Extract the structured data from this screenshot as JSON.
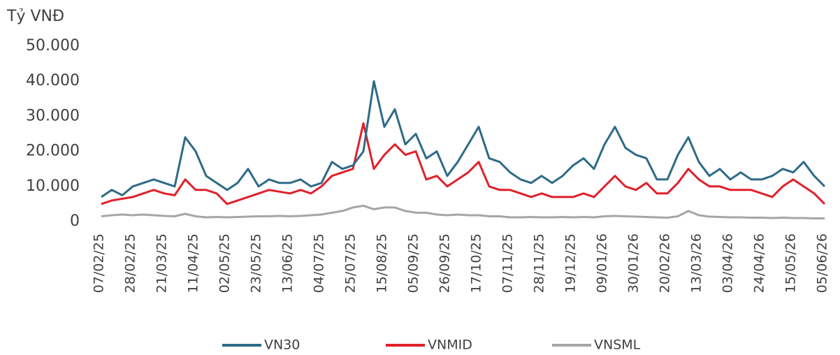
{
  "chart_data": {
    "type": "line",
    "y_label": "Tỷ VNĐ",
    "categories": [
      "07/02/25",
      null,
      null,
      "28/02/25",
      null,
      null,
      "21/03/25",
      null,
      null,
      "11/04/25",
      null,
      null,
      "02/05/25",
      null,
      null,
      "23/05/25",
      null,
      null,
      "13/06/25",
      null,
      null,
      "04/07/25",
      null,
      null,
      "25/07/25",
      null,
      null,
      "15/08/25",
      null,
      null,
      "05/09/25",
      null,
      null,
      "26/09/25",
      null,
      null,
      "17/10/25",
      null,
      null,
      "07/11/25",
      null,
      null,
      "28/11/25",
      null,
      null,
      "19/12/25",
      null,
      null,
      "09/01/26",
      null,
      null,
      "30/01/26",
      null,
      null,
      "20/02/26",
      null,
      null,
      "13/03/26",
      null,
      null,
      "03/04/26",
      null,
      null,
      "24/04/26",
      null,
      null,
      "15/05/26",
      null,
      null,
      "05/06/26"
    ],
    "series": [
      {
        "name": "VN30",
        "color": "#2e6b87",
        "values": [
          7000,
          9000,
          7500,
          10000,
          11000,
          12000,
          11000,
          10000,
          24000,
          20000,
          13000,
          11000,
          9000,
          11000,
          15000,
          10000,
          12000,
          11000,
          11000,
          12000,
          10000,
          11000,
          17000,
          15000,
          16000,
          20000,
          40000,
          27000,
          32000,
          22000,
          25000,
          18000,
          20000,
          13000,
          17000,
          22000,
          27000,
          18000,
          17000,
          14000,
          12000,
          11000,
          13000,
          11000,
          13000,
          16000,
          18000,
          15000,
          22000,
          27000,
          21000,
          19000,
          18000,
          12000,
          12000,
          19000,
          24000,
          17000,
          13000,
          15000,
          12000,
          14000,
          12000,
          12000,
          13000,
          15000,
          14000,
          17000,
          13000,
          10000
        ]
      },
      {
        "name": "VNMID",
        "color": "#e0202a",
        "values": [
          5000,
          6000,
          6500,
          7000,
          8000,
          9000,
          8000,
          7500,
          12000,
          9000,
          9000,
          8000,
          5000,
          6000,
          7000,
          8000,
          9000,
          8500,
          8000,
          9000,
          8000,
          10000,
          13000,
          14000,
          15000,
          28000,
          15000,
          19000,
          22000,
          19000,
          20000,
          12000,
          13000,
          10000,
          12000,
          14000,
          17000,
          10000,
          9000,
          9000,
          8000,
          7000,
          8000,
          7000,
          7000,
          7000,
          8000,
          7000,
          10000,
          13000,
          10000,
          9000,
          11000,
          8000,
          8000,
          11000,
          15000,
          12000,
          10000,
          10000,
          9000,
          9000,
          9000,
          8000,
          7000,
          10000,
          12000,
          10000,
          8000,
          5000
        ]
      },
      {
        "name": "VNSML",
        "color": "#a6a6a6",
        "values": [
          1500,
          1800,
          2000,
          1800,
          2000,
          1800,
          1600,
          1500,
          2200,
          1500,
          1200,
          1300,
          1200,
          1300,
          1400,
          1500,
          1500,
          1600,
          1500,
          1600,
          1800,
          2000,
          2500,
          3000,
          4000,
          4500,
          3500,
          4000,
          4000,
          3000,
          2500,
          2500,
          2000,
          1800,
          2000,
          1800,
          1800,
          1500,
          1500,
          1200,
          1200,
          1300,
          1200,
          1200,
          1300,
          1200,
          1300,
          1200,
          1500,
          1600,
          1500,
          1400,
          1300,
          1200,
          1100,
          1500,
          3000,
          1800,
          1400,
          1300,
          1200,
          1200,
          1100,
          1100,
          1000,
          1100,
          1000,
          1000,
          900,
          900
        ]
      }
    ],
    "ylim": [
      0,
      50000
    ],
    "yticks": [
      0,
      {
        "value": 10000,
        "label": "10.000"
      },
      {
        "value": 20000,
        "label": "20.000"
      },
      {
        "value": 30000,
        "label": "30.000"
      },
      {
        "value": 40000,
        "label": "40.000"
      },
      {
        "value": 50000,
        "label": "50.000"
      }
    ]
  }
}
